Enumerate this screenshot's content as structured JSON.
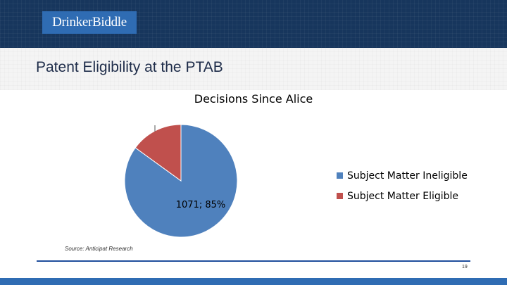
{
  "header": {
    "logo_text": "DrinkerBiddle"
  },
  "slide": {
    "title": "Patent Eligibility at the PTAB",
    "source": "Source: Anticipat Research",
    "page_number": "19"
  },
  "colors": {
    "header_band": "#17365d",
    "logo_box": "#2f6cb3",
    "ineligible": "#4f81bd",
    "eligible": "#c0504d",
    "rule": "#1f4e9d"
  },
  "chart_data": {
    "type": "pie",
    "title": "Decisions Since Alice",
    "slices": [
      {
        "name": "Subject Matter Ineligible",
        "value": 1071,
        "percent": 85,
        "label": "1071; 85%",
        "color": "#4f81bd"
      },
      {
        "name": "Subject Matter Eligible",
        "value": 189,
        "percent": 15,
        "label": "",
        "color": "#c0504d"
      }
    ],
    "start": "12 o'clock",
    "direction": "clockwise",
    "legend_position": "right"
  }
}
